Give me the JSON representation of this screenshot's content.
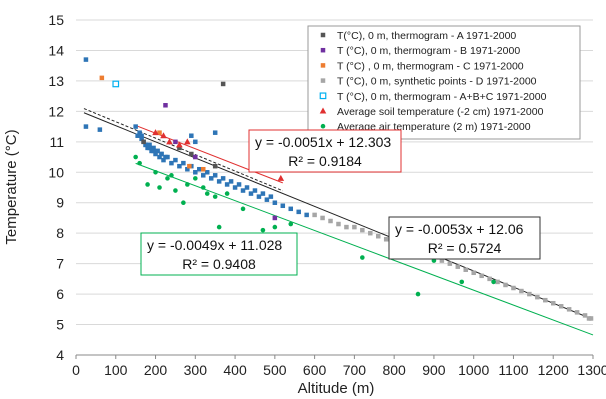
{
  "chart_data": {
    "type": "scatter",
    "xlabel": "Altitude (m)",
    "ylabel": "Temperature (°C)",
    "xlim": [
      0,
      1300
    ],
    "ylim": [
      4,
      15
    ],
    "x_ticks": [
      "0",
      "100",
      "200",
      "300",
      "400",
      "500",
      "600",
      "700",
      "800",
      "900",
      "1000",
      "1100",
      "1200",
      "1300"
    ],
    "y_ticks": [
      "4",
      "5",
      "6",
      "7",
      "8",
      "9",
      "10",
      "11",
      "12",
      "13",
      "14",
      "15"
    ],
    "grid": "horizontal",
    "legend_position": "top-right",
    "series": [
      {
        "name": "T(°C), 0 m, thermogram - A 1971-2000",
        "marker": "square",
        "color": "#555555",
        "x": [
          370,
          170,
          260,
          290,
          350
        ],
        "y": [
          12.9,
          11.0,
          10.8,
          10.6,
          10.2
        ]
      },
      {
        "name": "T (°C), 0 m, thermogram - B 1971-2000",
        "marker": "square",
        "color": "#7030a0",
        "x": [
          225,
          500,
          300,
          250
        ],
        "y": [
          12.2,
          8.5,
          10.5,
          11.0
        ]
      },
      {
        "name": "T (°C) , 0 m, thermogram - C 1971-2000",
        "marker": "square",
        "color": "#ed7d31",
        "x": [
          65,
          210,
          285,
          320
        ],
        "y": [
          13.1,
          11.3,
          10.2,
          10.1
        ]
      },
      {
        "name": "T (°C), 0 m, synthetic points - D 1971-2000",
        "marker": "square",
        "color": "#a6a6a6",
        "x": [
          600,
          620,
          640,
          660,
          680,
          700,
          720,
          740,
          760,
          780,
          800,
          820,
          840,
          860,
          880,
          900,
          920,
          940,
          960,
          980,
          1000,
          1020,
          1040,
          1060,
          1080,
          1100,
          1120,
          1140,
          1160,
          1180,
          1200,
          1220,
          1240,
          1260,
          1280,
          1290,
          1295
        ],
        "y": [
          8.6,
          8.5,
          8.4,
          8.3,
          8.2,
          8.2,
          8.1,
          8.0,
          7.9,
          7.8,
          7.7,
          7.6,
          7.5,
          7.4,
          7.3,
          7.2,
          7.1,
          7.0,
          6.9,
          6.8,
          6.7,
          6.6,
          6.5,
          6.4,
          6.3,
          6.2,
          6.1,
          6.0,
          5.9,
          5.8,
          5.7,
          5.6,
          5.5,
          5.4,
          5.3,
          5.2,
          5.2
        ]
      },
      {
        "name": "T (°C), 0 m, thermogram - A+B+C 1971-2000",
        "marker": "open-square",
        "color": "#00b0f0",
        "x": [
          100
        ],
        "y": [
          12.9
        ]
      },
      {
        "name": "Average soil temperature (-2 cm) 1971-2000",
        "marker": "triangle",
        "color": "#e03030",
        "x": [
          200,
          220,
          235,
          260,
          280,
          515,
          450
        ],
        "y": [
          11.3,
          11.2,
          11.0,
          10.9,
          11.0,
          9.8,
          10.1
        ]
      },
      {
        "name": "Average air temperature (2 m) 1971-2000",
        "marker": "circle",
        "color": "#00b050",
        "x": [
          150,
          160,
          180,
          210,
          230,
          250,
          270,
          300,
          320,
          350,
          360,
          380,
          420,
          460,
          470,
          500,
          540,
          720,
          860,
          900,
          970,
          1050,
          200,
          240,
          280,
          330
        ],
        "y": [
          10.5,
          10.3,
          9.6,
          9.5,
          9.8,
          9.4,
          9.0,
          9.8,
          9.5,
          9.2,
          8.2,
          9.3,
          8.8,
          7.9,
          8.1,
          8.2,
          8.3,
          7.2,
          6.0,
          7.1,
          6.4,
          6.4,
          10.0,
          9.9,
          9.6,
          9.3
        ]
      }
    ],
    "main_points": {
      "color": "#2e75b6",
      "x": [
        25,
        25,
        60,
        150,
        160,
        165,
        170,
        175,
        180,
        185,
        190,
        195,
        200,
        205,
        210,
        215,
        220,
        230,
        240,
        250,
        260,
        270,
        280,
        290,
        300,
        310,
        320,
        330,
        340,
        350,
        360,
        370,
        380,
        390,
        400,
        410,
        420,
        430,
        440,
        450,
        460,
        470,
        480,
        490,
        500,
        520,
        540,
        560,
        580,
        810,
        350,
        290,
        300,
        155,
        165,
        175,
        185,
        195,
        205,
        215,
        225
      ],
      "y": [
        13.7,
        11.5,
        11.4,
        11.5,
        11.3,
        11.2,
        11.0,
        10.9,
        10.8,
        10.9,
        10.7,
        10.8,
        10.6,
        10.7,
        10.5,
        10.6,
        10.4,
        10.5,
        10.3,
        10.4,
        10.2,
        10.3,
        10.1,
        10.2,
        10.0,
        10.1,
        9.9,
        10.0,
        9.8,
        9.9,
        9.7,
        9.8,
        9.6,
        9.7,
        9.5,
        9.6,
        9.4,
        9.5,
        9.3,
        9.4,
        9.2,
        9.3,
        9.1,
        9.2,
        9.0,
        8.9,
        8.8,
        8.7,
        8.6,
        7.7,
        11.3,
        11.2,
        11.0,
        11.2,
        11.1,
        10.9,
        10.8,
        10.7,
        10.7,
        10.6,
        10.5
      ]
    },
    "trendlines": [
      {
        "color": "#e03030",
        "dash": "solid",
        "slope": -0.0051,
        "intercept": 12.303,
        "x_range": [
          150,
          520
        ]
      },
      {
        "color": "#00b050",
        "dash": "solid",
        "slope": -0.0049,
        "intercept": 11.028,
        "x_range": [
          150,
          1300
        ]
      },
      {
        "color": "#222222",
        "dash": "solid",
        "slope": -0.0053,
        "intercept": 12.06,
        "x_range": [
          20,
          1300
        ]
      },
      {
        "color": "#222222",
        "dash": "dashed",
        "slope": -0.0054,
        "intercept": 12.2,
        "x_range": [
          20,
          520
        ]
      }
    ],
    "equations": {
      "red": {
        "line1": "y = -0.0051x + 12.303",
        "line2": "R² = 0.9184",
        "border": "#e03030"
      },
      "green": {
        "line1": "y = -0.0049x + 11.028",
        "line2": "R² = 0.9408",
        "border": "#00b050"
      },
      "black": {
        "line1": "y = -0.0053x + 12.06",
        "line2": "R² = 0.5724",
        "border": "#333333"
      }
    }
  }
}
